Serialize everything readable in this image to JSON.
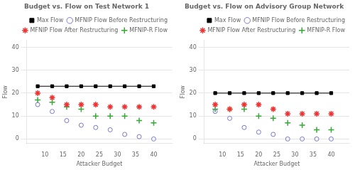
{
  "chart_data": [
    {
      "type": "scatter",
      "title": "Budget vs. Flow on Test Network 1",
      "x_label": "Attacker Budget",
      "y_label": "Flow",
      "x": [
        8,
        12,
        16,
        20,
        24,
        28,
        32,
        36,
        40
      ],
      "series": [
        {
          "name": "Max Flow",
          "type": "line",
          "marker": "square",
          "color": "#000000",
          "values": [
            23,
            23,
            23,
            23,
            23,
            23,
            23,
            23,
            23
          ]
        },
        {
          "name": "MFNIP Flow Before Restructuring",
          "type": "scatter",
          "marker": "open_circle",
          "color": "#7777cc",
          "values": [
            15,
            12,
            8,
            6,
            5,
            4,
            2,
            1,
            0
          ]
        },
        {
          "name": "MFNIP Flow After Restructuring",
          "type": "scatter",
          "marker": "star",
          "color": "#ee3333",
          "values": [
            20,
            18,
            15,
            15,
            15,
            14,
            14,
            14,
            14
          ]
        },
        {
          "name": "MFNIP-R Flow",
          "type": "scatter",
          "marker": "plus",
          "color": "#33aa33",
          "values": [
            17,
            16,
            14,
            13,
            10,
            10,
            10,
            8,
            7
          ]
        }
      ],
      "xlim": [
        5,
        45
      ],
      "xticks": [
        10,
        15,
        20,
        25,
        30,
        35,
        40
      ],
      "ylim": [
        -2,
        43
      ],
      "yticks": [
        0,
        10,
        20,
        30,
        40
      ],
      "grid": "y",
      "legend": "upper right"
    },
    {
      "type": "scatter",
      "title": "Budget vs. Flow on Advisory Group Network",
      "x_label": "Attacker Budget",
      "y_label": "Flow",
      "x": [
        8,
        12,
        16,
        20,
        24,
        28,
        32,
        36,
        40
      ],
      "series": [
        {
          "name": "Max Flow",
          "type": "line",
          "marker": "square",
          "color": "#000000",
          "values": [
            20,
            20,
            20,
            20,
            20,
            20,
            20,
            20,
            20
          ]
        },
        {
          "name": "MFNIP Flow Before Restructuring",
          "type": "scatter",
          "marker": "open_circle",
          "color": "#7777cc",
          "values": [
            12,
            9,
            5,
            3,
            2,
            0,
            0,
            0,
            0
          ]
        },
        {
          "name": "MFNIP Flow After Restructuring",
          "type": "scatter",
          "marker": "star",
          "color": "#ee3333",
          "values": [
            15,
            13,
            15,
            15,
            13,
            11,
            11,
            11,
            11
          ]
        },
        {
          "name": "MFNIP-R Flow",
          "type": "scatter",
          "marker": "plus",
          "color": "#33aa33",
          "values": [
            13,
            13,
            13,
            10,
            9,
            7,
            6,
            4,
            4
          ]
        }
      ],
      "xlim": [
        5,
        45
      ],
      "xticks": [
        10,
        15,
        20,
        25,
        30,
        35,
        40
      ],
      "ylim": [
        -2,
        43
      ],
      "yticks": [
        0,
        10,
        20,
        30,
        40
      ],
      "grid": "y",
      "legend": "upper right"
    }
  ]
}
